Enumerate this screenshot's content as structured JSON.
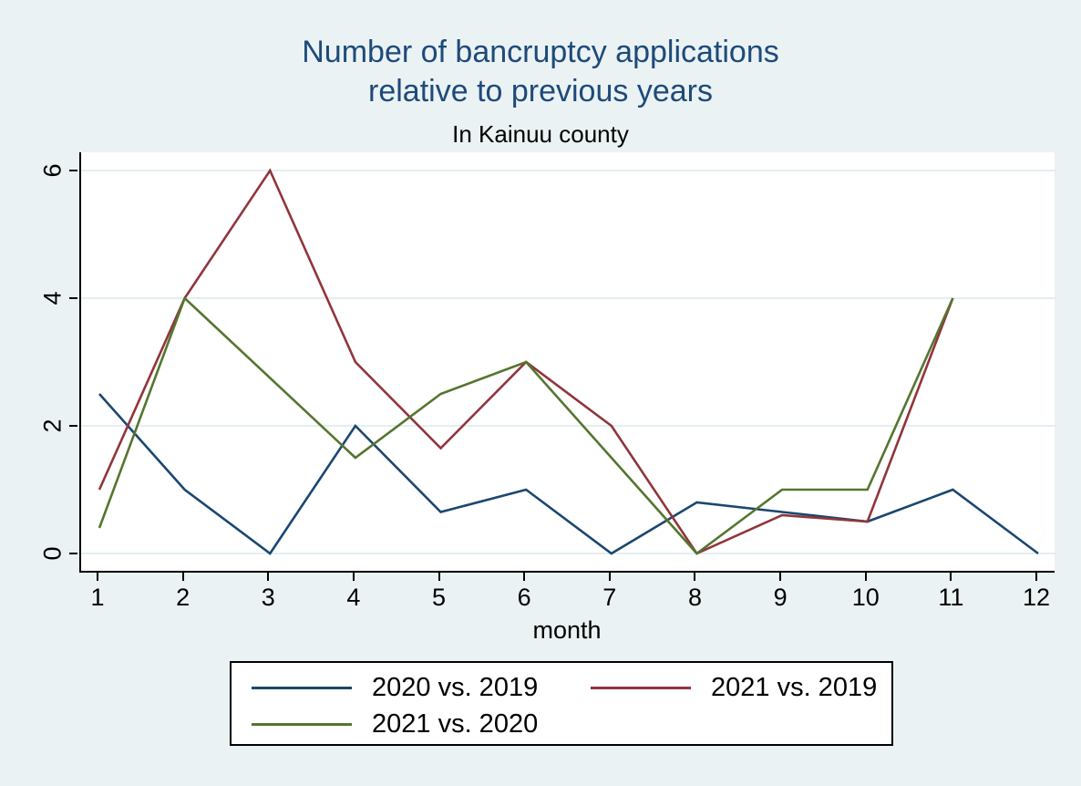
{
  "figure": {
    "title_line1": "Number of bancruptcy applications",
    "title_line2": "relative to previous years",
    "subtitle": "In Kainuu county",
    "background_color": "#eaf2f3",
    "plot_background_color": "#ffffff",
    "title_color": "#1e4a79"
  },
  "axis": {
    "xlabel": "month"
  },
  "chart_data": {
    "type": "line",
    "title": "Number of bancruptcy applications relative to previous years",
    "subtitle": "In Kainuu county",
    "xlabel": "month",
    "ylabel": "",
    "x": [
      1,
      2,
      3,
      4,
      5,
      6,
      7,
      8,
      9,
      10,
      11,
      12
    ],
    "x_ticks": [
      "1",
      "2",
      "3",
      "4",
      "5",
      "6",
      "7",
      "8",
      "9",
      "10",
      "11",
      "12"
    ],
    "y_ticks": [
      0,
      2,
      4,
      6
    ],
    "xlim": [
      0.79,
      12.21
    ],
    "ylim": [
      0,
      6.29
    ],
    "grid": "horizontal-only",
    "grid_color": "#e4eef2",
    "legend_position": "below-plot",
    "note": "missing values are connected with straight segments",
    "series": [
      {
        "name": "2020 vs. 2019",
        "color": "#1a476f",
        "values": [
          2.5,
          1,
          0,
          2,
          0.65,
          1,
          0,
          0.8,
          0.65,
          0.5,
          1,
          0
        ]
      },
      {
        "name": "2021 vs. 2019",
        "color": "#90353b",
        "values": [
          1,
          4,
          6,
          3,
          1.65,
          3,
          2,
          0,
          0.6,
          0.5,
          4,
          null
        ]
      },
      {
        "name": "2021 vs. 2020",
        "color": "#55752f",
        "values": [
          0.4,
          4,
          null,
          1.5,
          2.5,
          3,
          null,
          0,
          1,
          1,
          4,
          null
        ]
      }
    ]
  }
}
